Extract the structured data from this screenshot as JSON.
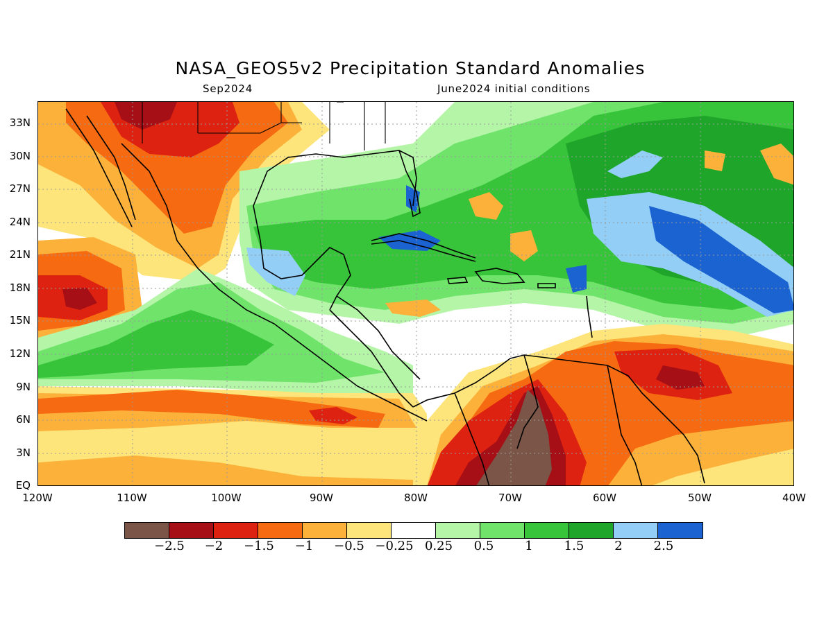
{
  "header": {
    "title": "NASA_GEOS5v2 Precipitation Standard Anomalies",
    "target_month": "Sep2024",
    "initial_conditions": "June2024 initial conditions"
  },
  "map": {
    "lat_labels": [
      "33N",
      "30N",
      "27N",
      "24N",
      "21N",
      "18N",
      "15N",
      "12N",
      "9N",
      "6N",
      "3N",
      "EQ"
    ],
    "lon_labels": [
      "120W",
      "110W",
      "100W",
      "90W",
      "80W",
      "70W",
      "60W",
      "50W",
      "40W"
    ],
    "region": "Caribbean / Central America / Eastern Pacific"
  },
  "legend": {
    "colors": [
      "#7a5548",
      "#a50f15",
      "#dd2211",
      "#f66a12",
      "#fcb23a",
      "#fde57c",
      "#ffffff",
      "#b4f5a8",
      "#6fe36a",
      "#38c43a",
      "#1fa62a",
      "#93cef6",
      "#1a63d0"
    ],
    "labels": [
      "−2.5",
      "−2",
      "−1.5",
      "−1",
      "−0.5",
      "−0.25",
      "0.25",
      "0.5",
      "1",
      "1.5",
      "2",
      "2.5"
    ]
  },
  "colors": {
    "strong_dry": "#7a5548",
    "very_dry": "#a50f15",
    "dry": "#dd2211",
    "moderate_dry": "#f66a12",
    "slight_dry": "#fcb23a",
    "weak_dry": "#fde57c",
    "neutral": "#ffffff",
    "weak_wet": "#b4f5a8",
    "slight_wet": "#6fe36a",
    "moderate_wet": "#38c43a",
    "wet": "#1fa62a",
    "very_wet": "#93cef6",
    "strong_wet": "#1a63d0"
  }
}
